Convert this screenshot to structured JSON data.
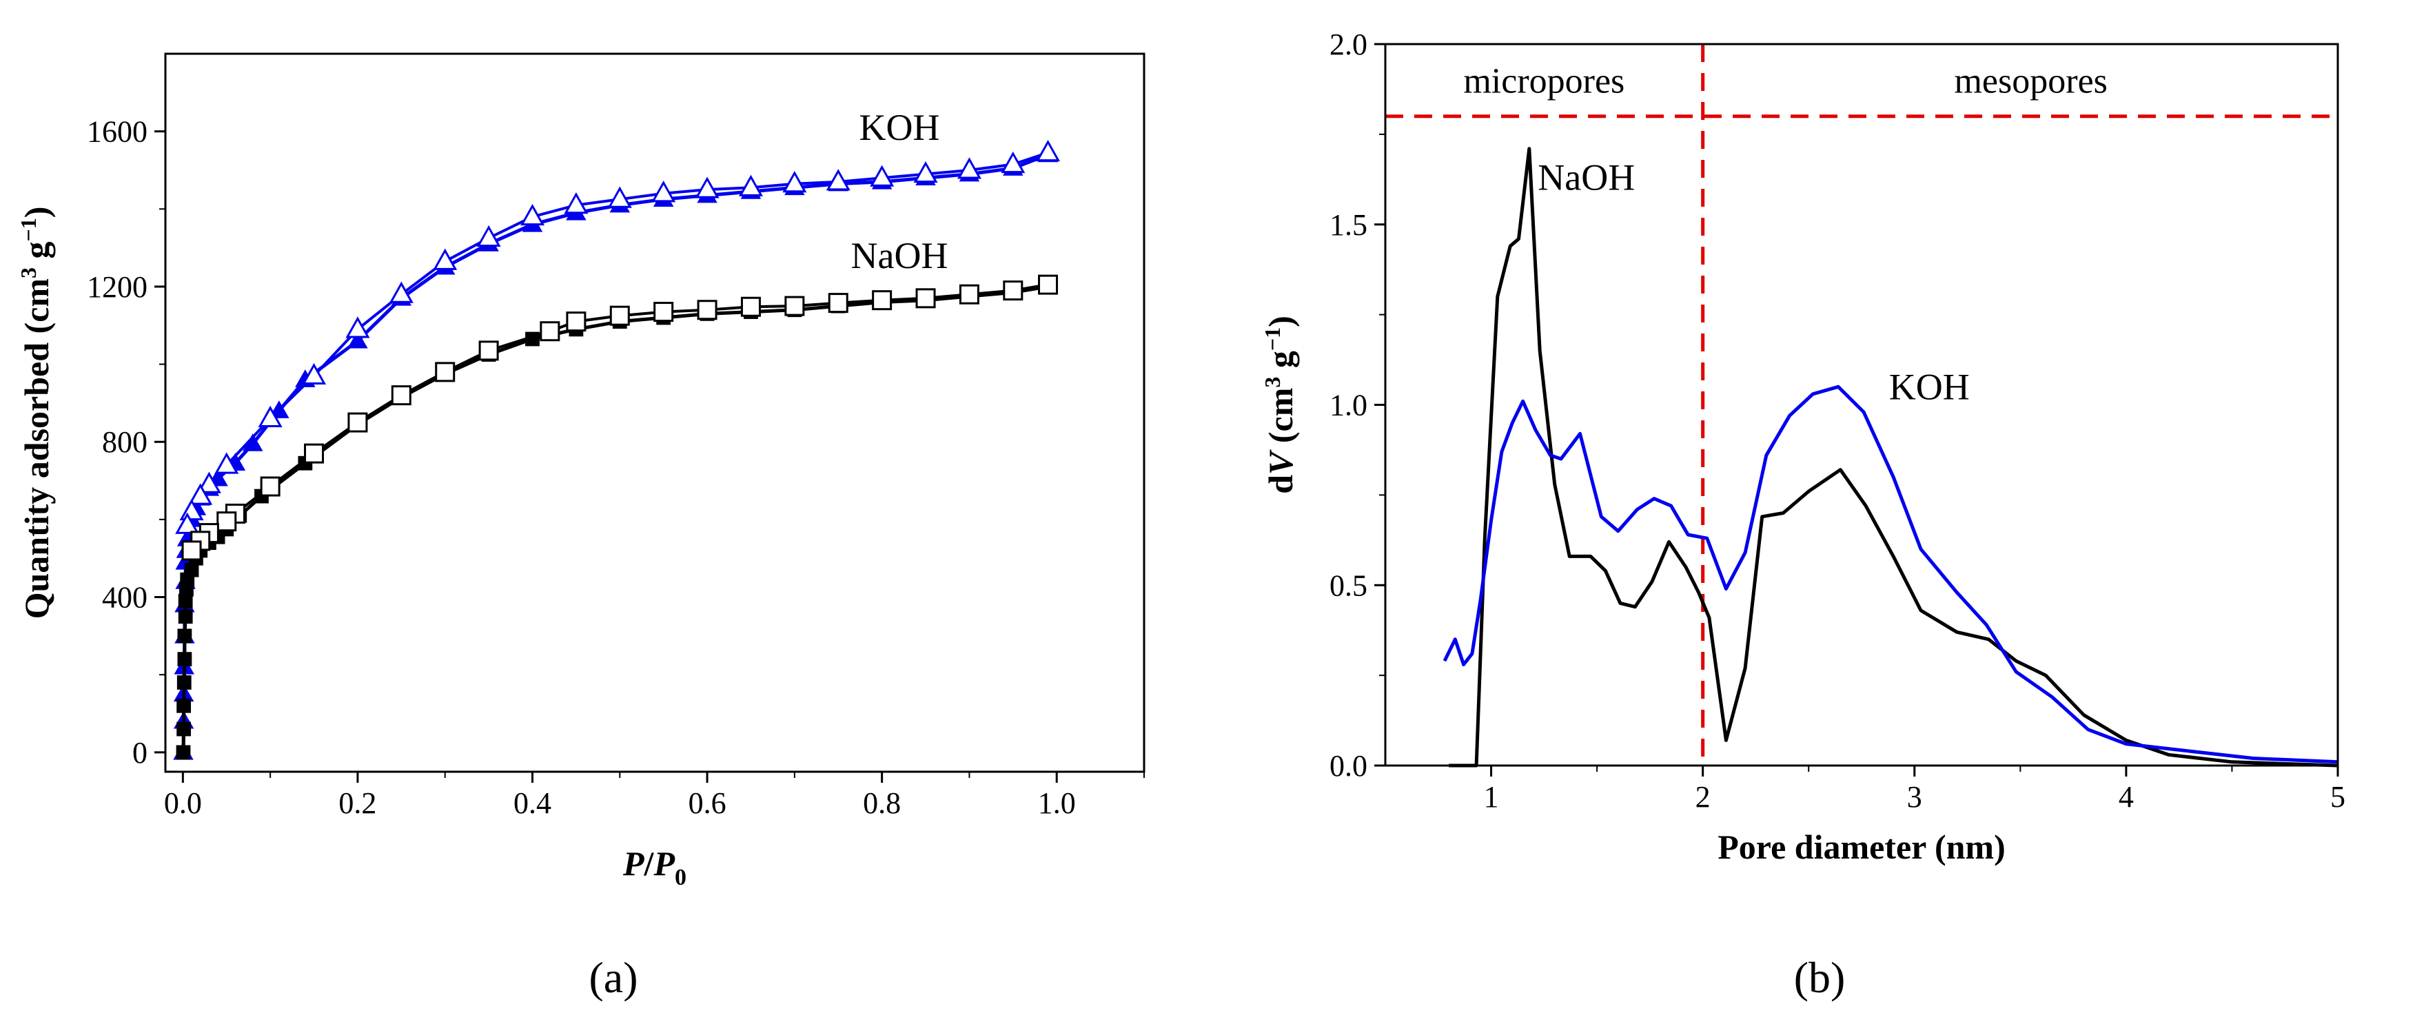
{
  "chart_data": [
    {
      "type": "scatter",
      "panel_label": "(a)",
      "xlabel": {
        "italic_main": "P",
        "slash": "/",
        "italic_sub_main": "P",
        "subscript": "0"
      },
      "ylabel": {
        "main": "Quantity adsorbed (cm",
        "sup3": "3",
        "mid": " g",
        "supneg": "−1",
        "close": ")"
      },
      "xlim": [
        -0.02,
        1.1
      ],
      "ylim": [
        -50,
        1800
      ],
      "xticks": [
        0.0,
        0.2,
        0.4,
        0.6,
        0.8,
        1.0
      ],
      "xtick_labels": [
        "0.0",
        "0.2",
        "0.4",
        "0.6",
        "0.8",
        "1.0"
      ],
      "yticks": [
        0,
        400,
        800,
        1200,
        1600
      ],
      "ytick_labels": [
        "0",
        "400",
        "800",
        "1200",
        "1600"
      ],
      "series": [
        {
          "name": "KOH",
          "color": "#0000ee",
          "marker": "triangle",
          "adsorption": [
            [
              0.0005,
              0
            ],
            [
              0.001,
              80
            ],
            [
              0.001,
              150
            ],
            [
              0.0015,
              220
            ],
            [
              0.002,
              300
            ],
            [
              0.002,
              380
            ],
            [
              0.003,
              440
            ],
            [
              0.003,
              490
            ],
            [
              0.004,
              520
            ],
            [
              0.005,
              550
            ],
            [
              0.01,
              600
            ],
            [
              0.015,
              630
            ],
            [
              0.02,
              655
            ],
            [
              0.03,
              680
            ],
            [
              0.04,
              705
            ],
            [
              0.06,
              745
            ],
            [
              0.08,
              795
            ],
            [
              0.11,
              880
            ],
            [
              0.14,
              960
            ],
            [
              0.2,
              1060
            ],
            [
              0.25,
              1170
            ],
            [
              0.3,
              1250
            ],
            [
              0.35,
              1310
            ],
            [
              0.4,
              1360
            ],
            [
              0.45,
              1390
            ],
            [
              0.5,
              1410
            ],
            [
              0.55,
              1425
            ],
            [
              0.6,
              1435
            ],
            [
              0.65,
              1445
            ],
            [
              0.7,
              1455
            ],
            [
              0.75,
              1465
            ],
            [
              0.8,
              1470
            ],
            [
              0.85,
              1480
            ],
            [
              0.9,
              1490
            ],
            [
              0.95,
              1505
            ],
            [
              0.99,
              1540
            ]
          ],
          "desorption": [
            [
              0.99,
              1545
            ],
            [
              0.95,
              1515
            ],
            [
              0.9,
              1500
            ],
            [
              0.85,
              1490
            ],
            [
              0.8,
              1480
            ],
            [
              0.75,
              1470
            ],
            [
              0.7,
              1465
            ],
            [
              0.65,
              1455
            ],
            [
              0.6,
              1450
            ],
            [
              0.55,
              1440
            ],
            [
              0.5,
              1425
            ],
            [
              0.45,
              1410
            ],
            [
              0.4,
              1380
            ],
            [
              0.35,
              1325
            ],
            [
              0.3,
              1265
            ],
            [
              0.25,
              1180
            ],
            [
              0.2,
              1090
            ],
            [
              0.15,
              970
            ],
            [
              0.1,
              860
            ],
            [
              0.05,
              740
            ],
            [
              0.03,
              690
            ],
            [
              0.02,
              660
            ],
            [
              0.01,
              620
            ],
            [
              0.005,
              585
            ]
          ],
          "label_pos": [
            0.82,
            1610
          ]
        },
        {
          "name": "NaOH",
          "color": "#000000",
          "marker": "square",
          "adsorption": [
            [
              0.0005,
              0
            ],
            [
              0.001,
              60
            ],
            [
              0.001,
              120
            ],
            [
              0.0015,
              180
            ],
            [
              0.002,
              240
            ],
            [
              0.002,
              300
            ],
            [
              0.003,
              350
            ],
            [
              0.003,
              390
            ],
            [
              0.004,
              420
            ],
            [
              0.005,
              445
            ],
            [
              0.01,
              470
            ],
            [
              0.015,
              500
            ],
            [
              0.02,
              520
            ],
            [
              0.03,
              540
            ],
            [
              0.04,
              555
            ],
            [
              0.05,
              575
            ],
            [
              0.065,
              610
            ],
            [
              0.09,
              660
            ],
            [
              0.14,
              745
            ],
            [
              0.2,
              845
            ],
            [
              0.25,
              915
            ],
            [
              0.3,
              975
            ],
            [
              0.35,
              1025
            ],
            [
              0.4,
              1065
            ],
            [
              0.45,
              1090
            ],
            [
              0.5,
              1110
            ],
            [
              0.55,
              1120
            ],
            [
              0.6,
              1130
            ],
            [
              0.65,
              1135
            ],
            [
              0.7,
              1140
            ],
            [
              0.75,
              1150
            ],
            [
              0.8,
              1160
            ],
            [
              0.85,
              1165
            ],
            [
              0.9,
              1175
            ],
            [
              0.95,
              1185
            ],
            [
              0.99,
              1200
            ]
          ],
          "desorption": [
            [
              0.99,
              1205
            ],
            [
              0.95,
              1190
            ],
            [
              0.9,
              1180
            ],
            [
              0.85,
              1170
            ],
            [
              0.8,
              1165
            ],
            [
              0.75,
              1158
            ],
            [
              0.7,
              1150
            ],
            [
              0.65,
              1148
            ],
            [
              0.6,
              1140
            ],
            [
              0.55,
              1135
            ],
            [
              0.5,
              1125
            ],
            [
              0.45,
              1110
            ],
            [
              0.42,
              1085
            ],
            [
              0.35,
              1035
            ],
            [
              0.3,
              980
            ],
            [
              0.25,
              920
            ],
            [
              0.2,
              850
            ],
            [
              0.15,
              770
            ],
            [
              0.1,
              685
            ],
            [
              0.06,
              615
            ],
            [
              0.05,
              595
            ],
            [
              0.03,
              565
            ],
            [
              0.02,
              545
            ],
            [
              0.01,
              520
            ]
          ],
          "label_pos": [
            0.82,
            1280
          ]
        }
      ]
    },
    {
      "type": "line",
      "panel_label": "(b)",
      "xlabel": "Pore diameter (nm)",
      "ylabel": {
        "main": "d",
        "italic": "V",
        "rest": " (cm",
        "sup3": "3",
        "mid": " g",
        "supneg": "−1",
        "close": ")"
      },
      "xlim": [
        0.5,
        5
      ],
      "ylim": [
        0,
        2.0
      ],
      "xticks": [
        1,
        2,
        3,
        4,
        5
      ],
      "xtick_labels": [
        "1",
        "2",
        "3",
        "4",
        "5"
      ],
      "yticks": [
        0.0,
        0.5,
        1.0,
        1.5,
        2.0
      ],
      "ytick_labels": [
        "0.0",
        "0.5",
        "1.0",
        "1.5",
        "2.0"
      ],
      "reference_lines": {
        "color": "#e00000",
        "vertical_x": 2.0,
        "horizontal_y": 1.8
      },
      "regions": [
        {
          "label": "micropores",
          "x": 1.25,
          "y": 1.9
        },
        {
          "label": "mesopores",
          "x": 3.55,
          "y": 1.9
        }
      ],
      "series": [
        {
          "name": "NaOH",
          "color": "#000000",
          "points": [
            [
              0.8,
              0.0
            ],
            [
              0.93,
              0.0
            ],
            [
              0.97,
              0.63
            ],
            [
              1.03,
              1.3
            ],
            [
              1.09,
              1.44
            ],
            [
              1.13,
              1.46
            ],
            [
              1.18,
              1.71
            ],
            [
              1.23,
              1.15
            ],
            [
              1.3,
              0.78
            ],
            [
              1.37,
              0.58
            ],
            [
              1.47,
              0.58
            ],
            [
              1.54,
              0.54
            ],
            [
              1.61,
              0.45
            ],
            [
              1.68,
              0.44
            ],
            [
              1.76,
              0.51
            ],
            [
              1.84,
              0.62
            ],
            [
              1.92,
              0.55
            ],
            [
              1.98,
              0.48
            ],
            [
              2.03,
              0.41
            ],
            [
              2.11,
              0.07
            ],
            [
              2.2,
              0.27
            ],
            [
              2.28,
              0.69
            ],
            [
              2.38,
              0.7
            ],
            [
              2.5,
              0.76
            ],
            [
              2.6,
              0.8
            ],
            [
              2.65,
              0.82
            ],
            [
              2.77,
              0.72
            ],
            [
              2.9,
              0.58
            ],
            [
              3.03,
              0.43
            ],
            [
              3.2,
              0.37
            ],
            [
              3.35,
              0.35
            ],
            [
              3.48,
              0.29
            ],
            [
              3.62,
              0.25
            ],
            [
              3.8,
              0.14
            ],
            [
              4.0,
              0.07
            ],
            [
              4.2,
              0.03
            ],
            [
              4.5,
              0.01
            ],
            [
              5.0,
              0.0
            ]
          ],
          "label_pos": [
            1.45,
            1.63
          ]
        },
        {
          "name": "KOH",
          "color": "#0000ee",
          "points": [
            [
              0.78,
              0.29
            ],
            [
              0.83,
              0.35
            ],
            [
              0.87,
              0.28
            ],
            [
              0.91,
              0.31
            ],
            [
              0.95,
              0.46
            ],
            [
              1.0,
              0.68
            ],
            [
              1.05,
              0.87
            ],
            [
              1.1,
              0.95
            ],
            [
              1.15,
              1.01
            ],
            [
              1.21,
              0.93
            ],
            [
              1.28,
              0.86
            ],
            [
              1.33,
              0.85
            ],
            [
              1.42,
              0.92
            ],
            [
              1.52,
              0.69
            ],
            [
              1.6,
              0.65
            ],
            [
              1.69,
              0.71
            ],
            [
              1.77,
              0.74
            ],
            [
              1.85,
              0.72
            ],
            [
              1.93,
              0.64
            ],
            [
              2.02,
              0.63
            ],
            [
              2.11,
              0.49
            ],
            [
              2.2,
              0.59
            ],
            [
              2.3,
              0.86
            ],
            [
              2.41,
              0.97
            ],
            [
              2.52,
              1.03
            ],
            [
              2.64,
              1.05
            ],
            [
              2.76,
              0.98
            ],
            [
              2.9,
              0.8
            ],
            [
              3.03,
              0.6
            ],
            [
              3.2,
              0.48
            ],
            [
              3.34,
              0.39
            ],
            [
              3.48,
              0.26
            ],
            [
              3.65,
              0.19
            ],
            [
              3.82,
              0.1
            ],
            [
              4.0,
              0.06
            ],
            [
              4.3,
              0.04
            ],
            [
              4.6,
              0.02
            ],
            [
              5.0,
              0.01
            ]
          ],
          "label_pos": [
            3.07,
            1.05
          ]
        }
      ]
    }
  ]
}
